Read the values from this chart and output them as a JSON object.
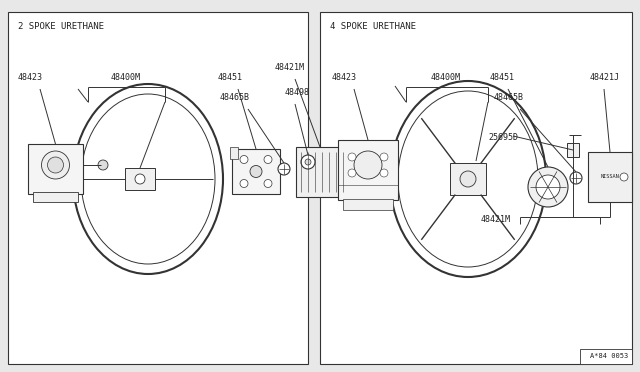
{
  "bg_color": "#e8e8e8",
  "panel_color": "#ffffff",
  "line_color": "#333333",
  "text_color": "#222222",
  "font_family": "monospace",
  "left_title": "2 SPOKE URETHANE",
  "right_title": "4 SPOKE URETHANE",
  "page_num": "A*84 0053",
  "label_fs": 6.0
}
